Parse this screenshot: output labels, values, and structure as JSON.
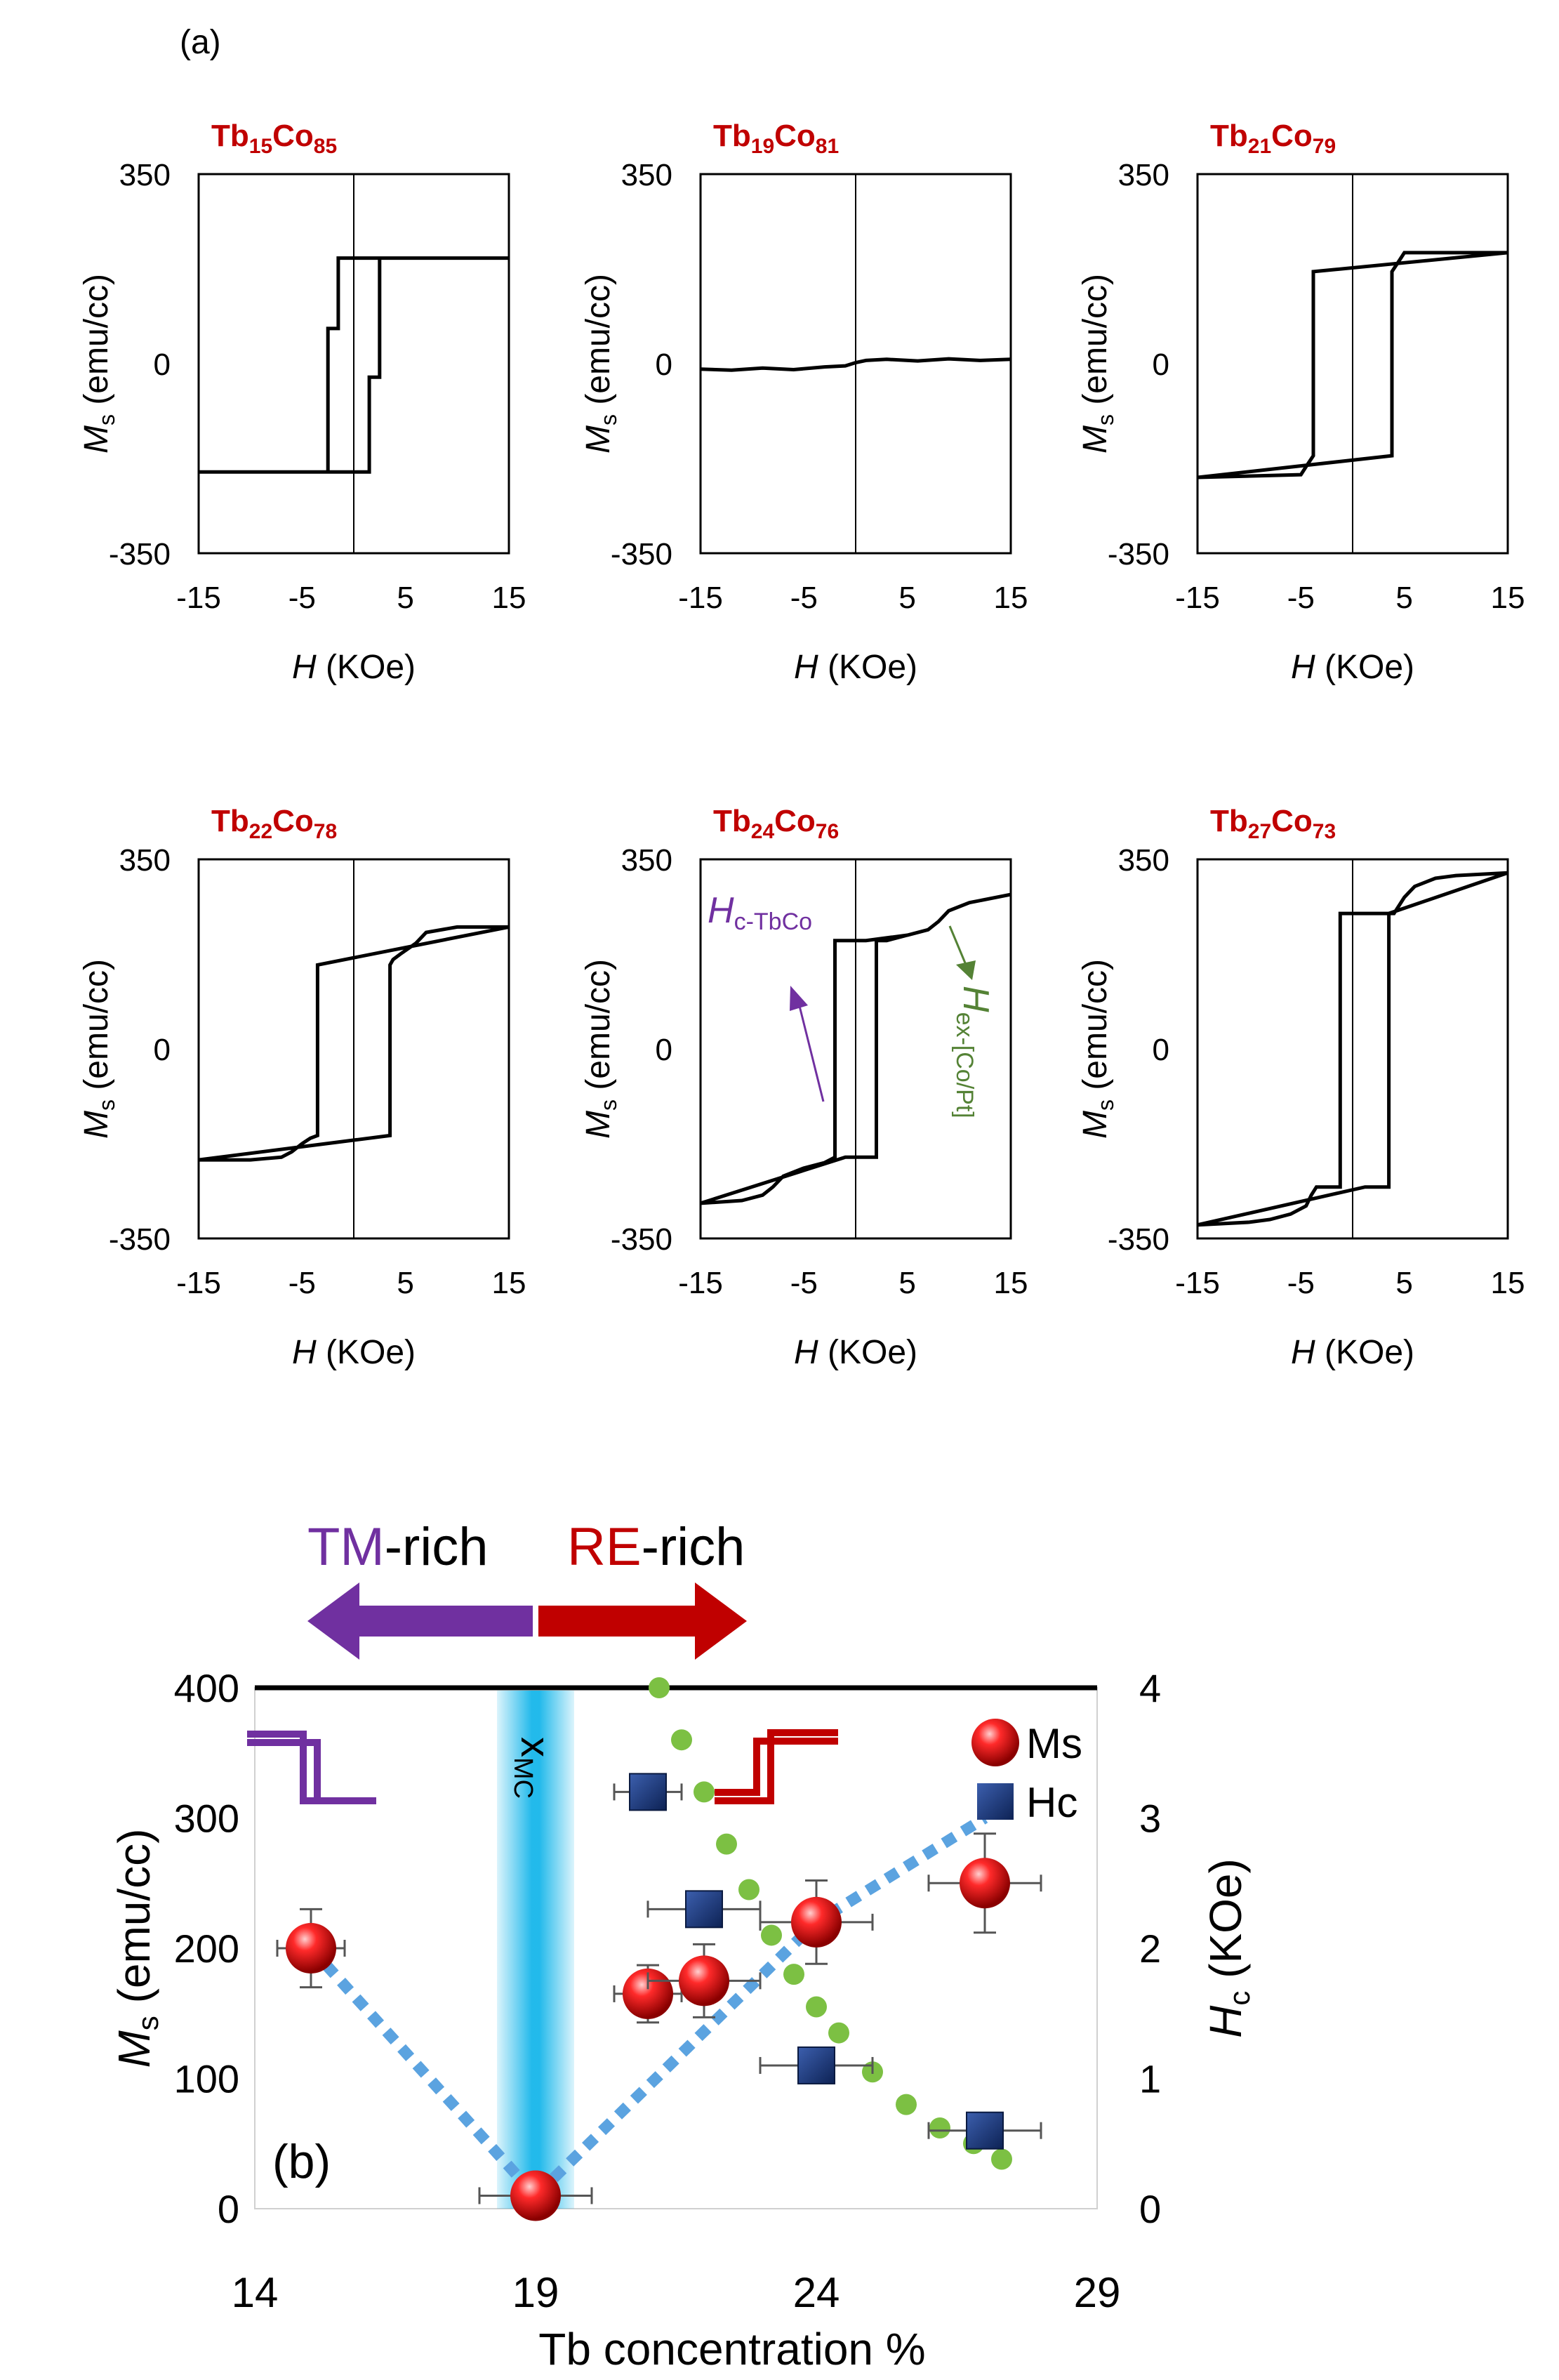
{
  "figure": {
    "panel_a_label": "(a)",
    "panel_b_label": "(b)"
  },
  "colors": {
    "sample_title": "#c00000",
    "tm_purple": "#7030a0",
    "re_red": "#c00000",
    "ms_marker": "#e01010",
    "hc_marker": "#1f3a7a",
    "trend_blue": "#5ba3e0",
    "green_dots": "#7cc043",
    "hex_green": "#548235",
    "highlight_blue": "#17b6ea"
  },
  "chart_data": [
    {
      "type": "line",
      "panel": "a",
      "title": "Tb15Co85",
      "title_parts": {
        "el1": "Tb",
        "sub1": "15",
        "el2": "Co",
        "sub2": "85"
      },
      "xlabel": "H (KOe)",
      "xlabel_italic": "H",
      "xlabel_unit": "(KOe)",
      "ylabel": "Ms (emu/cc)",
      "ylabel_main": "M",
      "ylabel_sub": "s",
      "ylabel_unit": "(emu/cc)",
      "xlim": [
        -15,
        15
      ],
      "ylim": [
        -350,
        350
      ],
      "xticks": [
        -15,
        -5,
        5,
        15
      ],
      "yticks": [
        350,
        0,
        -350
      ],
      "series": [
        {
          "name": "loop",
          "x": [
            -15,
            -2.5,
            -2.5,
            -1.5,
            -1.5,
            -0.2,
            -0.2,
            15,
            15,
            2.5,
            2.5,
            1.5,
            1.5,
            0.2,
            0.2,
            -15
          ],
          "y": [
            -200,
            -200,
            65,
            65,
            195,
            195,
            195,
            195,
            195,
            195,
            -25,
            -25,
            -200,
            -200,
            -200,
            -200
          ]
        }
      ],
      "annotations": []
    },
    {
      "type": "line",
      "panel": "a",
      "title": "Tb19Co81",
      "title_parts": {
        "el1": "Tb",
        "sub1": "19",
        "el2": "Co",
        "sub2": "81"
      },
      "xlabel": "H (KOe)",
      "xlabel_italic": "H",
      "xlabel_unit": "(KOe)",
      "ylabel": "Ms (emu/cc)",
      "ylabel_main": "M",
      "ylabel_sub": "s",
      "ylabel_unit": "(emu/cc)",
      "xlim": [
        -15,
        15
      ],
      "ylim": [
        -350,
        350
      ],
      "xticks": [
        -15,
        -5,
        5,
        15
      ],
      "yticks": [
        350,
        0,
        -350
      ],
      "series": [
        {
          "name": "loop",
          "x": [
            -15,
            -12,
            -9,
            -6,
            -3,
            -1,
            0,
            1,
            3,
            6,
            9,
            12,
            15
          ],
          "y": [
            -10,
            -12,
            -8,
            -11,
            -6,
            -4,
            2,
            6,
            8,
            5,
            9,
            6,
            8
          ]
        }
      ],
      "annotations": []
    },
    {
      "type": "line",
      "panel": "a",
      "title": "Tb21Co79",
      "title_parts": {
        "el1": "Tb",
        "sub1": "21",
        "el2": "Co",
        "sub2": "79"
      },
      "xlabel": "H (KOe)",
      "xlabel_italic": "H",
      "xlabel_unit": "(KOe)",
      "ylabel": "Ms (emu/cc)",
      "ylabel_main": "M",
      "ylabel_sub": "s",
      "ylabel_unit": "(emu/cc)",
      "xlim": [
        -15,
        15
      ],
      "ylim": [
        -350,
        350
      ],
      "xticks": [
        -15,
        -5,
        5,
        15
      ],
      "yticks": [
        350,
        0,
        -350
      ],
      "series": [
        {
          "name": "loop",
          "x": [
            -15,
            -5,
            -4.5,
            -3.8,
            -3.8,
            15,
            15,
            5,
            4.5,
            3.8,
            3.8,
            -15
          ],
          "y": [
            -210,
            -205,
            -190,
            -170,
            170,
            205,
            205,
            205,
            190,
            170,
            -170,
            -210
          ]
        }
      ],
      "annotations": []
    },
    {
      "type": "line",
      "panel": "a",
      "title": "Tb22Co78",
      "title_parts": {
        "el1": "Tb",
        "sub1": "22",
        "el2": "Co",
        "sub2": "78"
      },
      "xlabel": "H (KOe)",
      "xlabel_italic": "H",
      "xlabel_unit": "(KOe)",
      "ylabel": "Ms (emu/cc)",
      "ylabel_main": "M",
      "ylabel_sub": "s",
      "ylabel_unit": "(emu/cc)",
      "xlim": [
        -15,
        15
      ],
      "ylim": [
        -350,
        350
      ],
      "xticks": [
        -15,
        -5,
        5,
        15
      ],
      "yticks": [
        350,
        0,
        -350
      ],
      "series": [
        {
          "name": "loop",
          "x": [
            -15,
            -10,
            -7,
            -6,
            -5,
            -4.2,
            -3.5,
            -3.5,
            15,
            15,
            10,
            7,
            6,
            4.5,
            3.8,
            3.5,
            3.5,
            -15
          ],
          "y": [
            -205,
            -205,
            -200,
            -190,
            -175,
            -165,
            -160,
            155,
            225,
            225,
            225,
            215,
            195,
            175,
            165,
            155,
            -160,
            -205
          ]
        }
      ],
      "annotations": []
    },
    {
      "type": "line",
      "panel": "a",
      "title": "Tb24Co76",
      "title_parts": {
        "el1": "Tb",
        "sub1": "24",
        "el2": "Co",
        "sub2": "76"
      },
      "xlabel": "H (KOe)",
      "xlabel_italic": "H",
      "xlabel_unit": "(KOe)",
      "ylabel": "Ms (emu/cc)",
      "ylabel_main": "M",
      "ylabel_sub": "s",
      "ylabel_unit": "(emu/cc)",
      "xlim": [
        -15,
        15
      ],
      "ylim": [
        -350,
        350
      ],
      "xticks": [
        -15,
        -5,
        5,
        15
      ],
      "yticks": [
        350,
        0,
        -350
      ],
      "series": [
        {
          "name": "loop",
          "x": [
            -15,
            -11,
            -9,
            -8,
            -7,
            -5,
            -3,
            -2,
            -2,
            1,
            1,
            5,
            7,
            8,
            9,
            11,
            15,
            15,
            11,
            9,
            8,
            7,
            5,
            3,
            2,
            2,
            -1,
            -1,
            -15
          ],
          "y": [
            -285,
            -280,
            -270,
            -255,
            -235,
            -220,
            -210,
            -200,
            200,
            200,
            200,
            210,
            220,
            235,
            255,
            270,
            285,
            285,
            270,
            255,
            235,
            220,
            210,
            200,
            200,
            -200,
            -200,
            -200,
            -285
          ]
        }
      ],
      "annotations": [
        {
          "text_main": "H",
          "text_sub": "c-TbCo",
          "color": "tm_purple"
        },
        {
          "text_main": "H",
          "text_sub": "ex-[Co/Pt]",
          "color": "hex_green"
        }
      ]
    },
    {
      "type": "line",
      "panel": "a",
      "title": "Tb27Co73",
      "title_parts": {
        "el1": "Tb",
        "sub1": "27",
        "el2": "Co",
        "sub2": "73"
      },
      "xlabel": "H (KOe)",
      "xlabel_italic": "H",
      "xlabel_unit": "(KOe)",
      "ylabel": "Ms (emu/cc)",
      "ylabel_main": "M",
      "ylabel_sub": "s",
      "ylabel_unit": "(emu/cc)",
      "xlim": [
        -15,
        15
      ],
      "ylim": [
        -350,
        350
      ],
      "xticks": [
        -15,
        -5,
        5,
        15
      ],
      "yticks": [
        350,
        0,
        -350
      ],
      "series": [
        {
          "name": "loop",
          "x": [
            -15,
            -10,
            -8,
            -6,
            -4.5,
            -4,
            -3.5,
            -1.2,
            -1.2,
            4,
            4.5,
            5,
            6,
            8,
            10,
            15,
            15,
            3.5,
            3.5,
            1.2,
            1.2,
            -15
          ],
          "y": [
            -325,
            -320,
            -315,
            -305,
            -290,
            -270,
            -255,
            -255,
            250,
            250,
            265,
            280,
            300,
            315,
            320,
            325,
            325,
            250,
            -255,
            -255,
            -255,
            -325
          ]
        }
      ],
      "annotations": []
    },
    {
      "type": "scatter",
      "panel": "b",
      "xlabel": "Tb concentration %",
      "ylabel": "Ms (emu/cc)",
      "ylabel_main": "M",
      "ylabel_sub": "s",
      "ylabel_unit": "(emu/cc)",
      "y2label": "Hc (KOe)",
      "y2label_main": "H",
      "y2label_sub": "c",
      "y2label_unit": "(KOe)",
      "xlim": [
        14,
        29
      ],
      "ylim": [
        0,
        400
      ],
      "y2lim": [
        0,
        4
      ],
      "xticks": [
        14,
        19,
        24,
        29
      ],
      "yticks": [
        0,
        100,
        200,
        300,
        400
      ],
      "y2ticks": [
        0,
        1,
        2,
        3,
        4
      ],
      "series": [
        {
          "name": "Ms",
          "axis": "left",
          "marker": "sphere",
          "x": [
            15,
            19,
            21,
            22,
            24,
            27
          ],
          "y": [
            200,
            10,
            165,
            175,
            220,
            250
          ],
          "xerr": [
            0.6,
            1.0,
            0.6,
            1.0,
            1.0,
            1.0
          ],
          "yerr": [
            30,
            0,
            22,
            28,
            32,
            38
          ]
        },
        {
          "name": "Hc",
          "axis": "right",
          "marker": "square",
          "x": [
            21,
            22,
            24,
            27
          ],
          "y": [
            3.2,
            2.3,
            1.1,
            0.6
          ],
          "xerr": [
            0.6,
            1.0,
            1.0,
            1.0
          ],
          "yerr": [
            0,
            0,
            0,
            0
          ]
        },
        {
          "name": "Ms trend",
          "axis": "left",
          "style": "dotted-thick",
          "x": [
            15,
            19,
            24,
            27
          ],
          "y": [
            200,
            10,
            220,
            300
          ]
        },
        {
          "name": "Hc trend",
          "axis": "right",
          "style": "dots",
          "x": [
            21.2,
            21.6,
            22.0,
            22.4,
            22.8,
            23.2,
            23.6,
            24.0,
            24.4,
            25.0,
            25.6,
            26.2,
            26.8,
            27.3
          ],
          "y": [
            4.0,
            3.6,
            3.2,
            2.8,
            2.45,
            2.1,
            1.8,
            1.55,
            1.35,
            1.05,
            0.8,
            0.62,
            0.5,
            0.38
          ]
        }
      ],
      "legend": {
        "position": "top-right",
        "entries": [
          "Ms",
          "Hc"
        ]
      },
      "annotations": {
        "compensation_label": "x",
        "compensation_sub": "MC",
        "compensation_x": 19,
        "tm_rich_prefix": "TM",
        "re_rich_prefix": "RE",
        "rich_suffix": "-rich"
      }
    }
  ]
}
